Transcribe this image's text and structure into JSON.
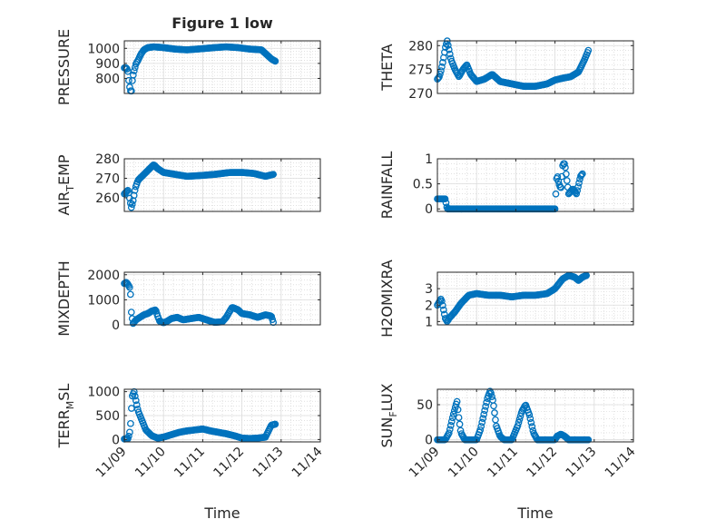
{
  "figure_title": "Figure 1 low",
  "marker_color": "#0072bd",
  "chart_data": [
    {
      "type": "scatter",
      "ylabel_parts": [
        "PRESSURE"
      ],
      "ylim": [
        700,
        1050
      ],
      "yticks": [
        {
          "v": 800,
          "label": "800"
        },
        {
          "v": 900,
          "label": "900"
        },
        {
          "v": 1000,
          "label": "1000"
        }
      ],
      "xticks": [],
      "xlabel": "",
      "grid": true,
      "keys": [
        [
          0,
          870
        ],
        [
          0.03,
          872
        ],
        [
          0.06,
          868
        ],
        [
          0.09,
          850
        ],
        [
          0.12,
          770
        ],
        [
          0.15,
          720
        ],
        [
          0.18,
          710
        ],
        [
          0.21,
          800
        ],
        [
          0.25,
          850
        ],
        [
          0.3,
          900
        ],
        [
          0.35,
          920
        ],
        [
          0.42,
          960
        ],
        [
          0.5,
          990
        ],
        [
          0.6,
          1005
        ],
        [
          0.75,
          1010
        ],
        [
          1.0,
          1005
        ],
        [
          1.3,
          995
        ],
        [
          1.6,
          990
        ],
        [
          2.0,
          998
        ],
        [
          2.3,
          1005
        ],
        [
          2.6,
          1010
        ],
        [
          2.9,
          1005
        ],
        [
          3.2,
          995
        ],
        [
          3.5,
          990
        ],
        [
          3.75,
          930
        ],
        [
          3.85,
          915
        ]
      ]
    },
    {
      "type": "scatter",
      "ylabel_parts": [
        "THETA"
      ],
      "ylim": [
        270,
        281
      ],
      "yticks": [
        {
          "v": 270,
          "label": "270"
        },
        {
          "v": 275,
          "label": "275"
        },
        {
          "v": 280,
          "label": "280"
        }
      ],
      "xticks": [],
      "xlabel": "",
      "grid": true,
      "keys": [
        [
          0,
          273
        ],
        [
          0.05,
          273.5
        ],
        [
          0.1,
          275
        ],
        [
          0.15,
          277
        ],
        [
          0.2,
          279.5
        ],
        [
          0.25,
          281
        ],
        [
          0.3,
          279
        ],
        [
          0.35,
          277
        ],
        [
          0.45,
          275
        ],
        [
          0.55,
          273.5
        ],
        [
          0.65,
          275
        ],
        [
          0.75,
          276
        ],
        [
          0.85,
          274
        ],
        [
          1.0,
          272.5
        ],
        [
          1.2,
          273
        ],
        [
          1.4,
          274
        ],
        [
          1.6,
          272.5
        ],
        [
          1.9,
          272
        ],
        [
          2.2,
          271.5
        ],
        [
          2.5,
          271.5
        ],
        [
          2.8,
          272
        ],
        [
          3.0,
          272.8
        ],
        [
          3.2,
          273.2
        ],
        [
          3.4,
          273.5
        ],
        [
          3.6,
          274.5
        ],
        [
          3.75,
          277
        ],
        [
          3.85,
          279
        ]
      ]
    },
    {
      "type": "scatter",
      "ylabel_parts": [
        "AIR",
        "T",
        "EMP"
      ],
      "ylim": [
        253,
        280
      ],
      "yticks": [
        {
          "v": 260,
          "label": "260"
        },
        {
          "v": 270,
          "label": "270"
        },
        {
          "v": 280,
          "label": "280"
        }
      ],
      "xticks": [],
      "xlabel": "",
      "grid": true,
      "keys": [
        [
          0,
          262
        ],
        [
          0.05,
          263
        ],
        [
          0.1,
          264
        ],
        [
          0.15,
          258
        ],
        [
          0.18,
          255
        ],
        [
          0.22,
          258
        ],
        [
          0.28,
          265
        ],
        [
          0.35,
          269
        ],
        [
          0.5,
          272
        ],
        [
          0.6,
          274
        ],
        [
          0.75,
          277
        ],
        [
          0.85,
          275
        ],
        [
          1.0,
          273
        ],
        [
          1.3,
          272
        ],
        [
          1.6,
          271
        ],
        [
          2.0,
          271.5
        ],
        [
          2.3,
          272
        ],
        [
          2.7,
          273
        ],
        [
          3.0,
          273
        ],
        [
          3.3,
          272.5
        ],
        [
          3.6,
          271
        ],
        [
          3.8,
          272
        ]
      ]
    },
    {
      "type": "scatter",
      "ylabel_parts": [
        "RAINFALL"
      ],
      "ylim": [
        -0.05,
        1
      ],
      "yticks": [
        {
          "v": 0,
          "label": "0"
        },
        {
          "v": 0.5,
          "label": "0.5"
        },
        {
          "v": 1,
          "label": "1"
        }
      ],
      "xticks": [],
      "xlabel": "",
      "grid": true,
      "keys": [
        [
          0,
          0.2
        ],
        [
          0.1,
          0.2
        ],
        [
          0.2,
          0.2
        ],
        [
          0.25,
          0
        ],
        [
          3.0,
          0
        ],
        [
          3.05,
          0.7
        ],
        [
          3.1,
          0.5
        ],
        [
          3.15,
          0.4
        ],
        [
          3.2,
          0.9
        ],
        [
          3.25,
          0.9
        ],
        [
          3.3,
          0.6
        ],
        [
          3.35,
          0.3
        ],
        [
          3.45,
          0.4
        ],
        [
          3.55,
          0.3
        ],
        [
          3.65,
          0.65
        ],
        [
          3.7,
          0.7
        ]
      ]
    },
    {
      "type": "scatter",
      "ylabel_parts": [
        "MIXDEPTH"
      ],
      "ylim": [
        0,
        2100
      ],
      "yticks": [
        {
          "v": 0,
          "label": "0"
        },
        {
          "v": 1000,
          "label": "1000"
        },
        {
          "v": 2000,
          "label": "2000"
        }
      ],
      "xticks": [],
      "xlabel": "",
      "grid": true,
      "keys": [
        [
          0,
          1650
        ],
        [
          0.05,
          1700
        ],
        [
          0.1,
          1600
        ],
        [
          0.15,
          1450
        ],
        [
          0.18,
          500
        ],
        [
          0.22,
          50
        ],
        [
          0.3,
          200
        ],
        [
          0.4,
          300
        ],
        [
          0.5,
          400
        ],
        [
          0.6,
          450
        ],
        [
          0.7,
          550
        ],
        [
          0.8,
          600
        ],
        [
          0.85,
          350
        ],
        [
          0.9,
          150
        ],
        [
          1.0,
          80
        ],
        [
          1.1,
          150
        ],
        [
          1.2,
          250
        ],
        [
          1.35,
          300
        ],
        [
          1.5,
          200
        ],
        [
          1.7,
          250
        ],
        [
          1.9,
          300
        ],
        [
          2.1,
          200
        ],
        [
          2.3,
          100
        ],
        [
          2.5,
          120
        ],
        [
          2.6,
          300
        ],
        [
          2.75,
          700
        ],
        [
          2.9,
          600
        ],
        [
          3.0,
          450
        ],
        [
          3.2,
          400
        ],
        [
          3.4,
          300
        ],
        [
          3.6,
          400
        ],
        [
          3.75,
          350
        ],
        [
          3.8,
          100
        ]
      ]
    },
    {
      "type": "scatter",
      "ylabel_parts": [
        "H2OMIXRA"
      ],
      "ylim": [
        0.8,
        4
      ],
      "yticks": [
        {
          "v": 1,
          "label": "1"
        },
        {
          "v": 2,
          "label": "2"
        },
        {
          "v": 3,
          "label": "3"
        }
      ],
      "xticks": [],
      "xlabel": "",
      "grid": true,
      "keys": [
        [
          0,
          2
        ],
        [
          0.05,
          2.2
        ],
        [
          0.1,
          2.4
        ],
        [
          0.15,
          1.8
        ],
        [
          0.2,
          1.2
        ],
        [
          0.25,
          1
        ],
        [
          0.3,
          1.2
        ],
        [
          0.45,
          1.6
        ],
        [
          0.6,
          2.1
        ],
        [
          0.8,
          2.6
        ],
        [
          1.0,
          2.7
        ],
        [
          1.3,
          2.6
        ],
        [
          1.6,
          2.6
        ],
        [
          1.9,
          2.5
        ],
        [
          2.2,
          2.6
        ],
        [
          2.5,
          2.6
        ],
        [
          2.8,
          2.7
        ],
        [
          3.0,
          3.0
        ],
        [
          3.2,
          3.6
        ],
        [
          3.35,
          3.8
        ],
        [
          3.5,
          3.7
        ],
        [
          3.6,
          3.5
        ],
        [
          3.7,
          3.7
        ],
        [
          3.8,
          3.8
        ]
      ]
    },
    {
      "type": "scatter",
      "ylabel_parts": [
        "TERR",
        "M",
        "SL"
      ],
      "ylim": [
        -50,
        1050
      ],
      "yticks": [
        {
          "v": 0,
          "label": "0"
        },
        {
          "v": 500,
          "label": "500"
        },
        {
          "v": 1000,
          "label": "1000"
        }
      ],
      "xticks": [
        {
          "v": 0,
          "label": "11/09"
        },
        {
          "v": 1,
          "label": "11/10"
        },
        {
          "v": 2,
          "label": "11/11"
        },
        {
          "v": 3,
          "label": "11/12"
        },
        {
          "v": 4,
          "label": "11/13"
        },
        {
          "v": 5,
          "label": "11/14"
        }
      ],
      "xlabel": "Time",
      "grid": true,
      "keys": [
        [
          0,
          10
        ],
        [
          0.1,
          20
        ],
        [
          0.15,
          200
        ],
        [
          0.2,
          900
        ],
        [
          0.25,
          1000
        ],
        [
          0.3,
          800
        ],
        [
          0.35,
          600
        ],
        [
          0.45,
          400
        ],
        [
          0.55,
          200
        ],
        [
          0.7,
          80
        ],
        [
          0.85,
          30
        ],
        [
          1.0,
          50
        ],
        [
          1.2,
          100
        ],
        [
          1.4,
          150
        ],
        [
          1.6,
          180
        ],
        [
          1.8,
          200
        ],
        [
          2.0,
          220
        ],
        [
          2.2,
          180
        ],
        [
          2.4,
          150
        ],
        [
          2.6,
          120
        ],
        [
          2.8,
          80
        ],
        [
          3.0,
          30
        ],
        [
          3.2,
          20
        ],
        [
          3.4,
          30
        ],
        [
          3.6,
          50
        ],
        [
          3.75,
          300
        ],
        [
          3.85,
          320
        ]
      ]
    },
    {
      "type": "scatter",
      "ylabel_parts": [
        "SUN",
        "F",
        "LUX"
      ],
      "ylim": [
        -3,
        72
      ],
      "yticks": [
        {
          "v": 0,
          "label": "0"
        },
        {
          "v": 50,
          "label": "50"
        }
      ],
      "xticks": [
        {
          "v": 0,
          "label": "11/09"
        },
        {
          "v": 1,
          "label": "11/10"
        },
        {
          "v": 2,
          "label": "11/11"
        },
        {
          "v": 3,
          "label": "11/12"
        },
        {
          "v": 4,
          "label": "11/13"
        },
        {
          "v": 5,
          "label": "11/14"
        }
      ],
      "xlabel": "Time",
      "grid": true,
      "keys": [
        [
          0,
          0
        ],
        [
          0.2,
          0
        ],
        [
          0.3,
          10
        ],
        [
          0.38,
          30
        ],
        [
          0.45,
          45
        ],
        [
          0.5,
          55
        ],
        [
          0.55,
          30
        ],
        [
          0.6,
          10
        ],
        [
          0.7,
          0
        ],
        [
          1.0,
          0
        ],
        [
          1.1,
          15
        ],
        [
          1.2,
          40
        ],
        [
          1.28,
          60
        ],
        [
          1.35,
          70
        ],
        [
          1.42,
          55
        ],
        [
          1.5,
          20
        ],
        [
          1.6,
          5
        ],
        [
          1.7,
          0
        ],
        [
          1.9,
          0
        ],
        [
          2.05,
          20
        ],
        [
          2.15,
          40
        ],
        [
          2.25,
          50
        ],
        [
          2.35,
          35
        ],
        [
          2.45,
          10
        ],
        [
          2.55,
          0
        ],
        [
          3.0,
          0
        ],
        [
          3.05,
          5
        ],
        [
          3.15,
          8
        ],
        [
          3.25,
          5
        ],
        [
          3.35,
          0
        ],
        [
          3.85,
          0
        ]
      ]
    }
  ]
}
